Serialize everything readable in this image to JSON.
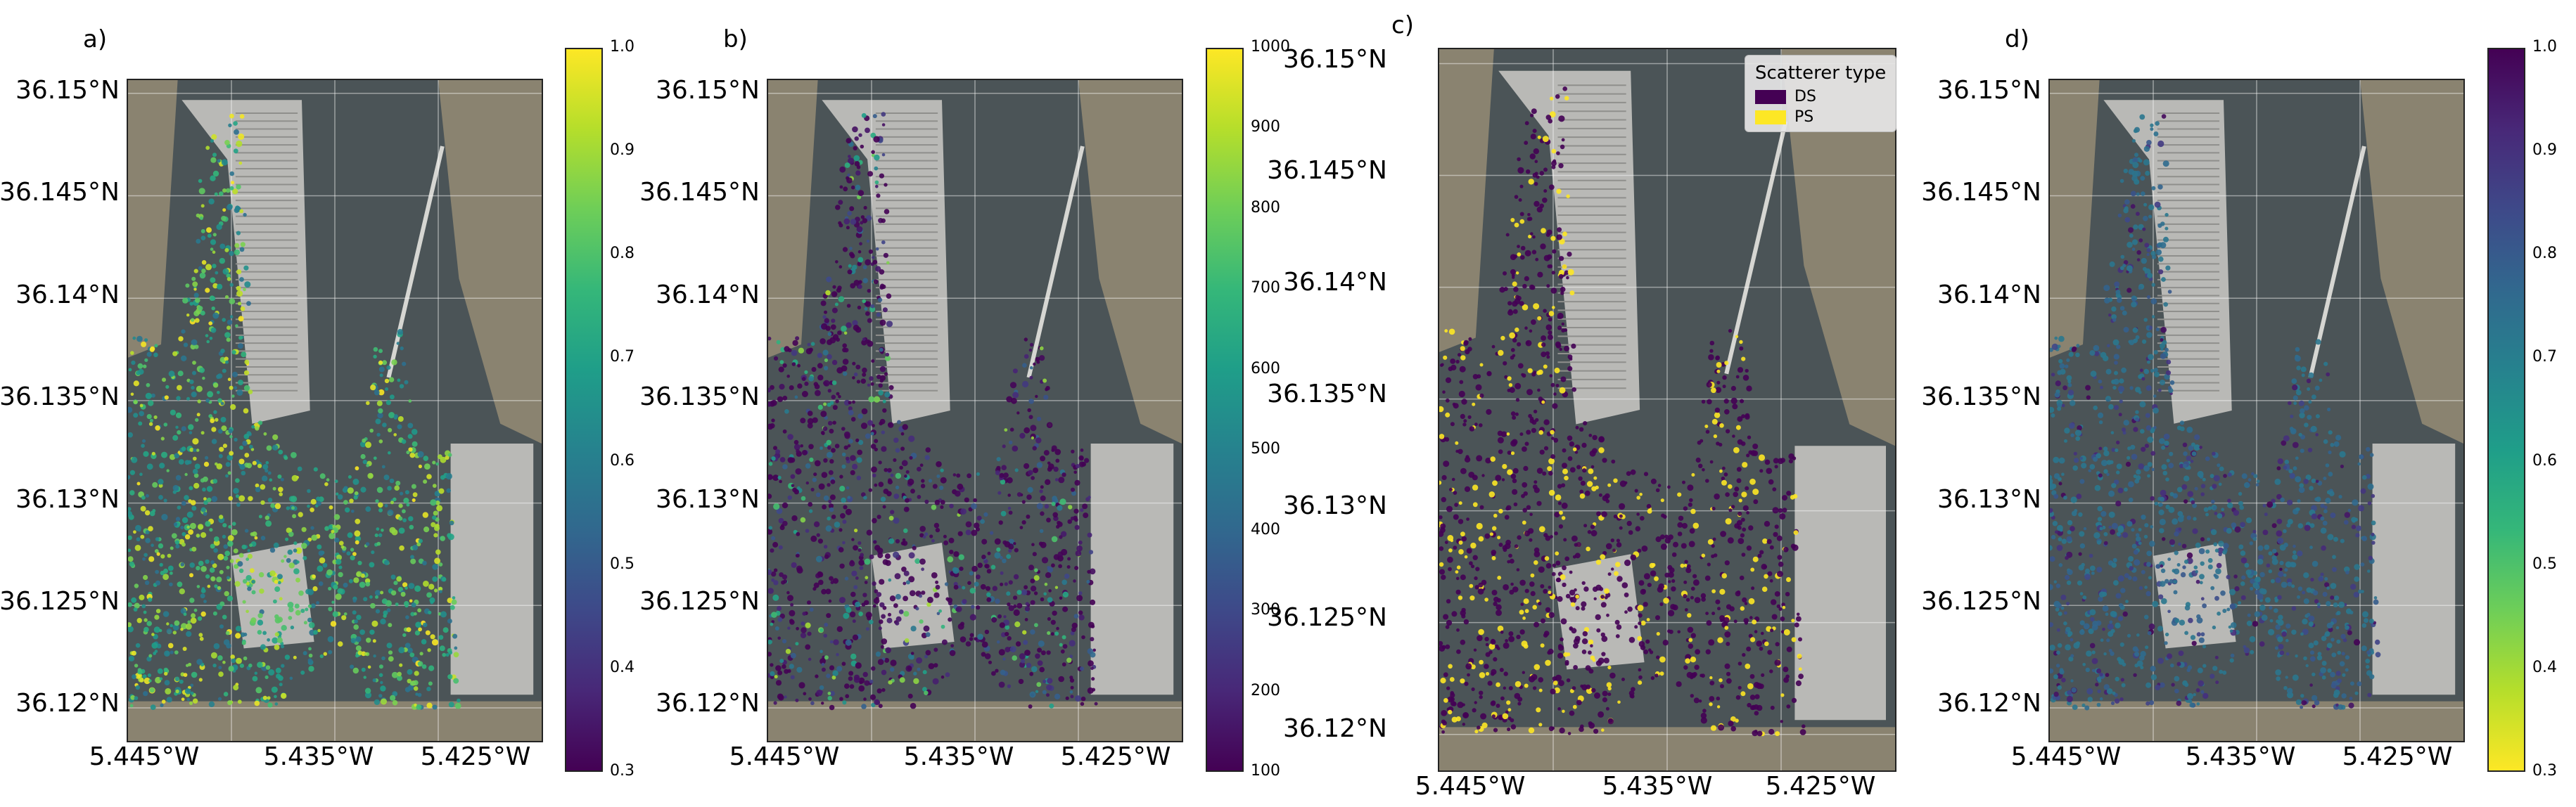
{
  "panels": [
    {
      "letter": "a)",
      "lat_labels": [
        "36.15°N",
        "36.145°N",
        "36.14°N",
        "36.135°N",
        "36.13°N",
        "36.125°N",
        "36.12°N"
      ],
      "lon_labels": [
        "5.445°W",
        "5.435°W",
        "5.425°W"
      ],
      "colorbar": {
        "ticks": [
          "1.0",
          "0.9",
          "0.8",
          "0.7",
          "0.6",
          "0.5",
          "0.4",
          "0.3"
        ],
        "colormap": "viridis",
        "reversed": false,
        "range": [
          0.3,
          1.0
        ]
      }
    },
    {
      "letter": "b)",
      "lat_labels": [
        "36.15°N",
        "36.145°N",
        "36.14°N",
        "36.135°N",
        "36.13°N",
        "36.125°N",
        "36.12°N"
      ],
      "lon_labels": [
        "5.445°W",
        "5.435°W",
        "5.425°W"
      ],
      "colorbar": {
        "ticks": [
          "1000",
          "900",
          "800",
          "700",
          "600",
          "500",
          "400",
          "300",
          "200",
          "100"
        ],
        "colormap": "viridis",
        "reversed": false,
        "range": [
          100,
          1000
        ]
      }
    },
    {
      "letter": "c)",
      "lat_labels": [
        "36.15°N",
        "36.145°N",
        "36.14°N",
        "36.135°N",
        "36.13°N",
        "36.125°N",
        "36.12°N"
      ],
      "lon_labels": [
        "5.445°W",
        "5.435°W",
        "5.425°W"
      ],
      "legend": {
        "title": "Scatterer type",
        "items": [
          {
            "label": "DS",
            "color": "#440154"
          },
          {
            "label": "PS",
            "color": "#fde725"
          }
        ]
      }
    },
    {
      "letter": "d)",
      "lat_labels": [
        "36.15°N",
        "36.145°N",
        "36.14°N",
        "36.135°N",
        "36.13°N",
        "36.125°N",
        "36.12°N"
      ],
      "lon_labels": [
        "5.445°W",
        "5.435°W",
        "5.425°W"
      ],
      "colorbar": {
        "ticks": [
          "1.0",
          "0.9",
          "0.8",
          "0.7",
          "0.6",
          "0.5",
          "0.4",
          "0.3"
        ],
        "colormap": "viridis",
        "reversed": true,
        "range": [
          0.3,
          1.0
        ]
      }
    }
  ],
  "colors": {
    "ds": "#440154",
    "ps": "#fde725",
    "water": "#4b5457",
    "land": "#8a8370",
    "terminal": "#b9b9b6"
  }
}
